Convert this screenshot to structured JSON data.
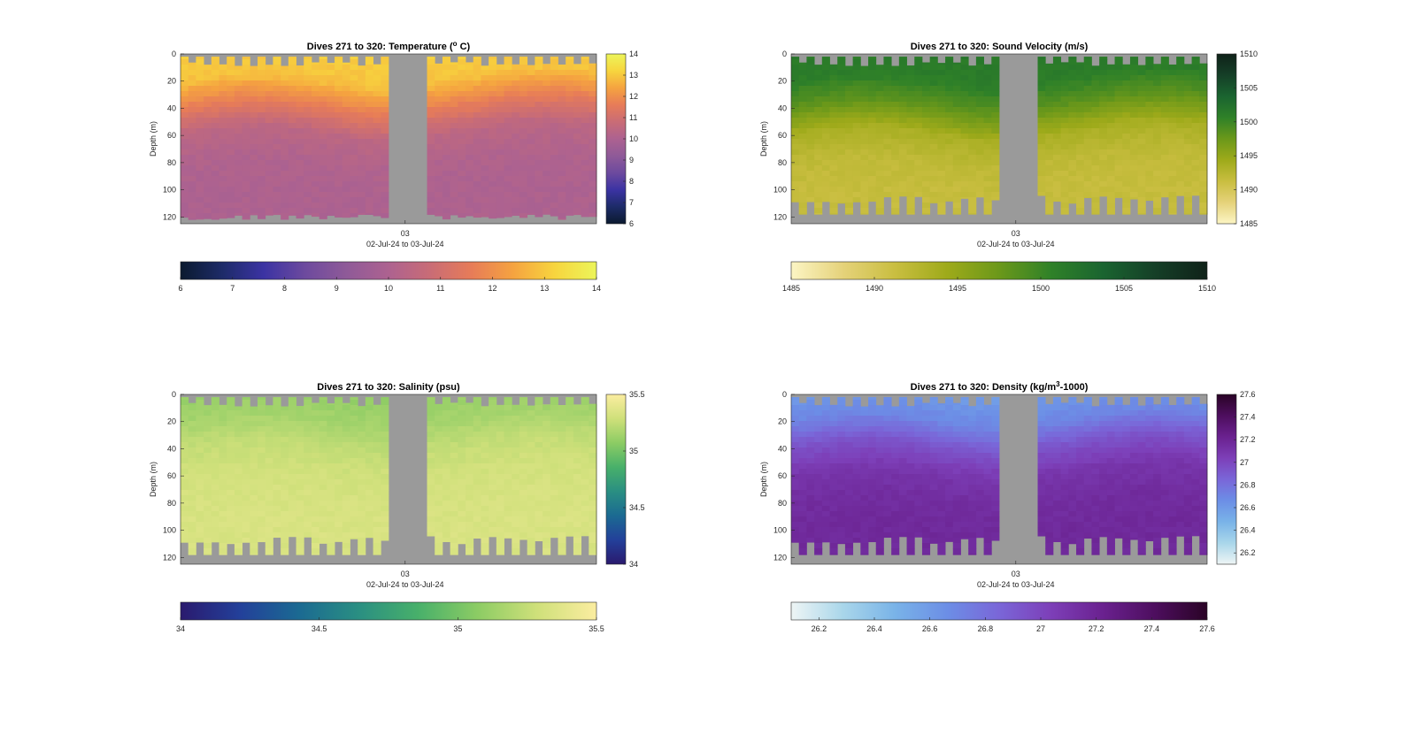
{
  "figure": {
    "time_label": "02-Jul-24 to 03-Jul-24",
    "x_tick_label": "03",
    "depth_label": "Depth (m)",
    "depth_ticks": [
      0,
      20,
      40,
      60,
      80,
      100,
      120
    ],
    "background": "#ffffff",
    "nodata_color": "#9a9a9a"
  },
  "chart_data": [
    {
      "type": "heatmap",
      "title_prefix": "Dives 271 to 320: Temperature (",
      "title_sup": "o",
      "title_suffix": " C)",
      "variable": "Temperature",
      "units": "°C",
      "xlabel": "02-Jul-24 to 03-Jul-24",
      "ylabel": "Depth (m)",
      "ylim": [
        0,
        125
      ],
      "y_reversed": true,
      "x_ticks": [
        "03"
      ],
      "clim": [
        6,
        14
      ],
      "colorbar_ticks": [
        6,
        7,
        8,
        9,
        10,
        11,
        12,
        13,
        14
      ],
      "colormap": [
        "#0b1a2f",
        "#1d2b68",
        "#3b33a3",
        "#6d4a9e",
        "#8f5a98",
        "#ad6290",
        "#c96c76",
        "#e77c58",
        "#f5a340",
        "#f7d53e",
        "#ecf55a"
      ],
      "gap_fraction": [
        0.5,
        0.58
      ],
      "profile_depth": [
        0,
        20,
        40,
        60,
        80,
        100,
        120
      ],
      "profile_values": [
        13.1,
        12.9,
        11.6,
        10.4,
        10.1,
        10.0,
        10.0
      ]
    },
    {
      "type": "heatmap",
      "title_prefix": "Dives 271 to 320: Sound Velocity (m/s)",
      "title_sup": "",
      "title_suffix": "",
      "variable": "Sound Velocity",
      "units": "m/s",
      "xlabel": "02-Jul-24 to 03-Jul-24",
      "ylabel": "Depth (m)",
      "ylim": [
        0,
        125
      ],
      "y_reversed": true,
      "x_ticks": [
        "03"
      ],
      "clim": [
        1485,
        1510
      ],
      "colorbar_ticks": [
        1485,
        1490,
        1495,
        1500,
        1505,
        1510
      ],
      "colormap": [
        "#fcf5c4",
        "#e5d27a",
        "#c9be40",
        "#9eaa1a",
        "#6b981a",
        "#2f8128",
        "#1a6430",
        "#153f27",
        "#0f2219"
      ],
      "gap_fraction": [
        0.5,
        0.58
      ],
      "profile_depth": [
        0,
        20,
        40,
        60,
        80,
        100,
        120
      ],
      "profile_values": [
        1501.5,
        1501.0,
        1498.0,
        1493.5,
        1492.0,
        1491.5,
        1491.5
      ]
    },
    {
      "type": "heatmap",
      "title_prefix": "Dives 271 to 320: Salinity (psu)",
      "title_sup": "",
      "title_suffix": "",
      "variable": "Salinity",
      "units": "psu",
      "xlabel": "02-Jul-24 to 03-Jul-24",
      "ylabel": "Depth (m)",
      "ylim": [
        0,
        125
      ],
      "y_reversed": true,
      "x_ticks": [
        "03"
      ],
      "clim": [
        34,
        35.5
      ],
      "colorbar_ticks": [
        34,
        34.5,
        35,
        35.5
      ],
      "colormap": [
        "#2a1a6e",
        "#23409a",
        "#1b6a92",
        "#2a8f82",
        "#48b06a",
        "#8ccc64",
        "#cfe07a",
        "#fbeda0"
      ],
      "gap_fraction": [
        0.5,
        0.58
      ],
      "profile_depth": [
        0,
        20,
        40,
        60,
        80,
        100,
        120
      ],
      "profile_values": [
        35.1,
        35.15,
        35.25,
        35.3,
        35.32,
        35.33,
        35.33
      ]
    },
    {
      "type": "heatmap",
      "title_prefix": "Dives 271 to 320: Density (kg/m",
      "title_sup": "3",
      "title_suffix": "-1000)",
      "variable": "Density",
      "units": "kg/m3-1000",
      "xlabel": "02-Jul-24 to 03-Jul-24",
      "ylabel": "Depth (m)",
      "ylim": [
        0,
        125
      ],
      "y_reversed": true,
      "x_ticks": [
        "03"
      ],
      "clim": [
        26.1,
        27.6
      ],
      "colorbar_ticks": [
        26.2,
        26.4,
        26.6,
        26.8,
        27,
        27.2,
        27.4,
        27.6
      ],
      "colormap": [
        "#eef5f5",
        "#a9d6ea",
        "#79b3e8",
        "#6c8ee6",
        "#7a66d8",
        "#7d3fb8",
        "#6a218f",
        "#4d0e5e",
        "#2a0326"
      ],
      "gap_fraction": [
        0.5,
        0.58
      ],
      "profile_depth": [
        0,
        20,
        40,
        60,
        80,
        100,
        120
      ],
      "profile_values": [
        26.6,
        26.7,
        26.95,
        27.1,
        27.15,
        27.17,
        27.17
      ]
    }
  ]
}
